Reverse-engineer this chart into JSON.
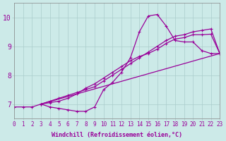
{
  "xlabel": "Windchill (Refroidissement éolien,°C)",
  "bg_color": "#cceae8",
  "grid_color": "#aacccc",
  "line_color": "#990099",
  "xlim": [
    0,
    23
  ],
  "ylim": [
    6.5,
    10.5
  ],
  "yticks": [
    7,
    8,
    9,
    10
  ],
  "xticks": [
    0,
    1,
    2,
    3,
    4,
    5,
    6,
    7,
    8,
    9,
    10,
    11,
    12,
    13,
    14,
    15,
    16,
    17,
    18,
    19,
    20,
    21,
    22,
    23
  ],
  "curve1_x": [
    0,
    1,
    2,
    3,
    4,
    5,
    6,
    7,
    8,
    9,
    10,
    11,
    12,
    13,
    14,
    15,
    16,
    17,
    18,
    19,
    20,
    21,
    22,
    23
  ],
  "curve1_y": [
    6.9,
    6.9,
    6.9,
    7.0,
    6.9,
    6.85,
    6.8,
    6.75,
    6.75,
    6.9,
    7.5,
    7.75,
    8.1,
    8.6,
    9.5,
    10.05,
    10.1,
    9.7,
    9.2,
    9.15,
    9.15,
    8.85,
    8.75,
    8.75
  ],
  "curve2_x": [
    3,
    4,
    5,
    6,
    7,
    8,
    9,
    10,
    11,
    12,
    13,
    14,
    15,
    16,
    17,
    18,
    19,
    20,
    21,
    22,
    23
  ],
  "curve2_y": [
    7.0,
    7.1,
    7.2,
    7.3,
    7.4,
    7.5,
    7.6,
    7.8,
    8.0,
    8.2,
    8.4,
    8.6,
    8.8,
    9.0,
    9.2,
    9.35,
    9.4,
    9.5,
    9.55,
    9.6,
    8.75
  ],
  "curve3_x": [
    3,
    23
  ],
  "curve3_y": [
    7.0,
    8.75
  ],
  "curve4_x": [
    3,
    4,
    5,
    6,
    7,
    8,
    9,
    10,
    11,
    12,
    13,
    14,
    15,
    16,
    17,
    18,
    19,
    20,
    21,
    22,
    23
  ],
  "curve4_y": [
    7.0,
    7.05,
    7.1,
    7.2,
    7.35,
    7.55,
    7.7,
    7.9,
    8.1,
    8.3,
    8.5,
    8.65,
    8.75,
    8.9,
    9.1,
    9.25,
    9.3,
    9.4,
    9.4,
    9.42,
    8.75
  ]
}
